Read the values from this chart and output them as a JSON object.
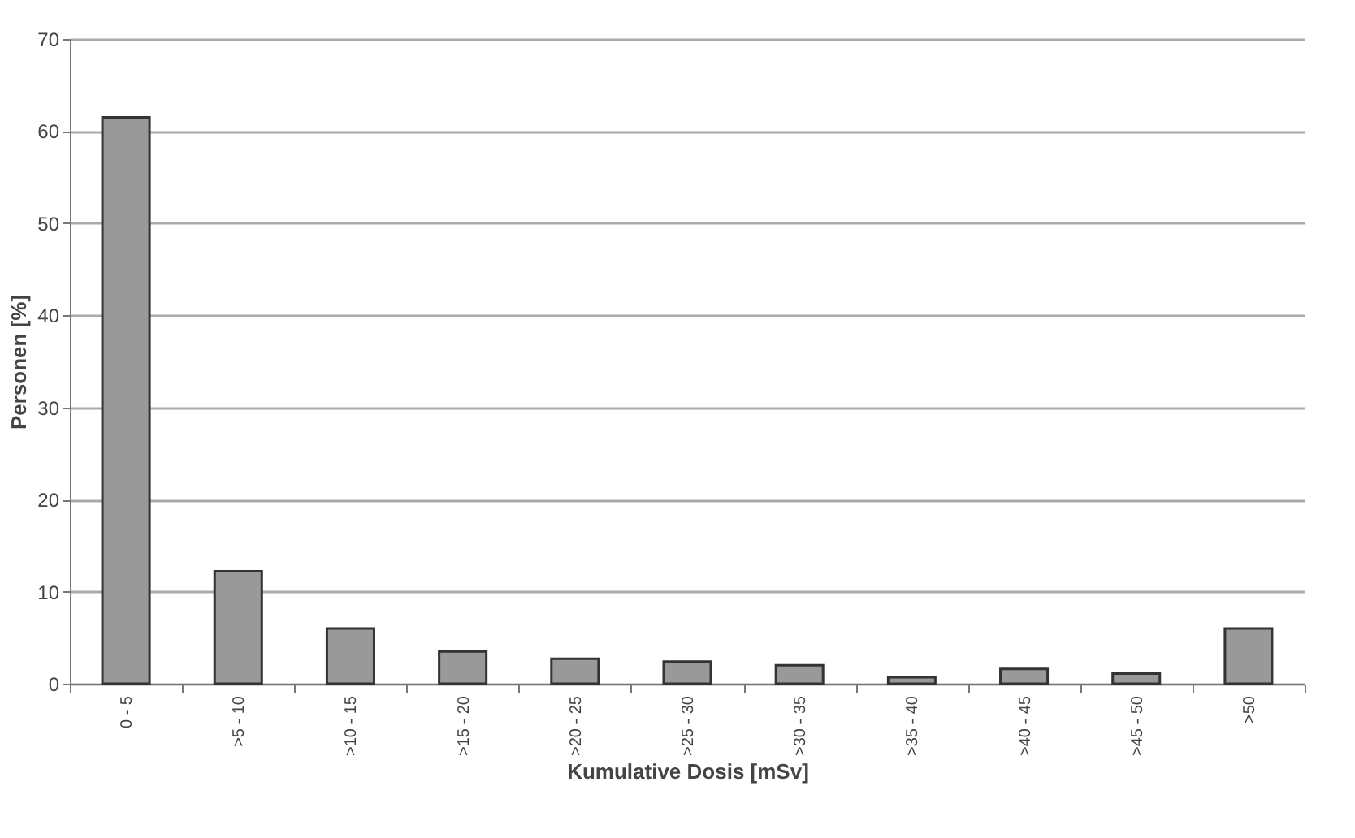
{
  "chart_data": {
    "type": "bar",
    "xlabel": "Kumulative Dosis [mSv]",
    "ylabel": "Personen [%]",
    "categories": [
      "0 - 5",
      ">5 - 10",
      ">10 - 15",
      ">15 - 20",
      ">20 - 25",
      ">25 - 30",
      ">30 - 35",
      ">35 - 40",
      ">40 - 45",
      ">45 - 50",
      ">50"
    ],
    "values": [
      61.5,
      12.2,
      6.0,
      3.5,
      2.7,
      2.4,
      2.0,
      0.7,
      1.6,
      1.1,
      6.0
    ],
    "color": "#999999",
    "ylim": [
      0,
      70
    ],
    "yticks": [
      0,
      10,
      20,
      30,
      40,
      50,
      60,
      70
    ],
    "grid": "y"
  }
}
